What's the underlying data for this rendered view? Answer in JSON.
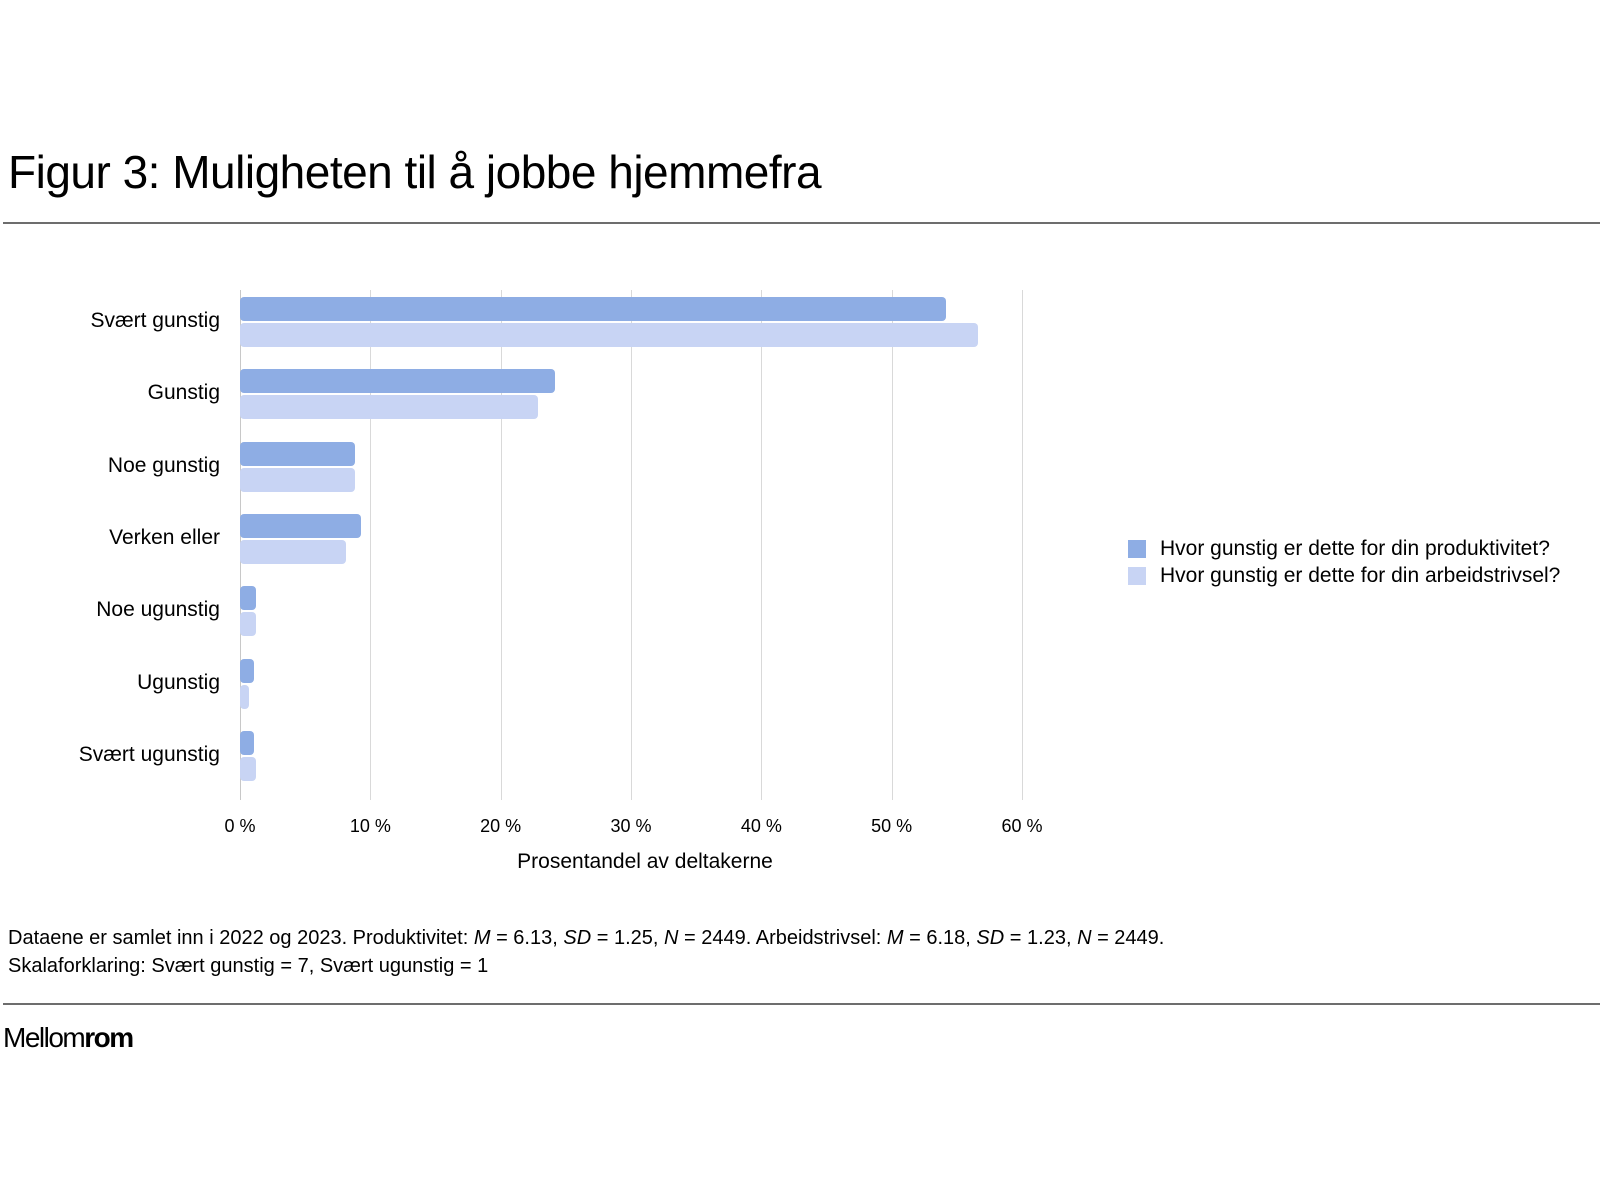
{
  "title": "Figur 3: Muligheten til å jobbe hjemmefra",
  "chart_data": {
    "type": "bar",
    "orientation": "horizontal",
    "title": "Figur 3: Muligheten til å jobbe hjemmefra",
    "categories": [
      "Svært gunstig",
      "Gunstig",
      "Noe gunstig",
      "Verken eller",
      "Noe ugunstig",
      "Ugunstig",
      "Svært ugunstig"
    ],
    "series": [
      {
        "name": "Hvor gunstig er dette for din produktivitet?",
        "color": "#8eade4",
        "values": [
          54.2,
          24.2,
          8.8,
          9.3,
          1.2,
          1.1,
          1.1
        ]
      },
      {
        "name": "Hvor gunstig er dette for din arbeidstrivsel?",
        "color": "#c8d4f4",
        "values": [
          56.6,
          22.9,
          8.8,
          8.1,
          1.2,
          0.7,
          1.2
        ]
      }
    ],
    "xlabel": "Prosentandel av deltakerne",
    "ylabel": "",
    "xlim": [
      0,
      60
    ],
    "xticks": [
      "0 %",
      "10 %",
      "20 %",
      "30 %",
      "40 %",
      "50 %",
      "60 %"
    ],
    "grid": true,
    "legend_position": "right"
  },
  "note": {
    "line1_parts": [
      "Dataene er samlet inn i 2022 og 2023. Produktivitet: ",
      "M",
      " = 6.13, ",
      "SD",
      " = 1.25, ",
      "N",
      " = 2449. Arbeidstrivsel: ",
      "M",
      " = 6.18, ",
      "SD",
      " = 1.23, ",
      "N",
      " = 2449."
    ],
    "line2": "Skalaforklaring: Svært gunstig = 7, Svært ugunstig = 1"
  },
  "brand": {
    "light": "Mellom",
    "bold": "rom"
  }
}
